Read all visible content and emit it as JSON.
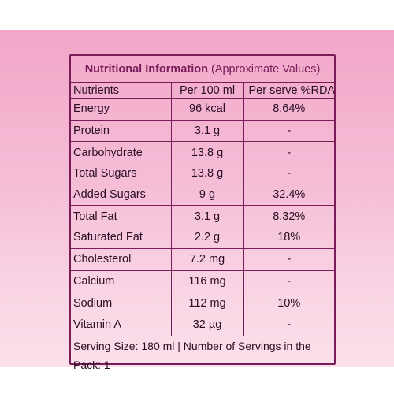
{
  "panel": {
    "title_bold": "Nutritional Information",
    "title_rest": "(Approximate Values)"
  },
  "table": {
    "headers": [
      "Nutrients",
      "Per 100 ml",
      "Per serve %RDA"
    ],
    "rows": [
      {
        "nutrient": "Energy",
        "per100": "96 kcal",
        "rda": "8.64%"
      },
      {
        "nutrient": "Protein",
        "per100": "3.1 g",
        "rda": "-"
      },
      {
        "nutrient": "Carbohydrate",
        "per100": "13.8 g",
        "rda": "-"
      },
      {
        "nutrient": "Total Sugars",
        "per100": "13.8 g",
        "rda": "-"
      },
      {
        "nutrient": "Added Sugars",
        "per100": "9 g",
        "rda": "32.4%"
      },
      {
        "nutrient": "Total Fat",
        "per100": "3.1 g",
        "rda": "8.32%"
      },
      {
        "nutrient": "Saturated Fat",
        "per100": "2.2 g",
        "rda": "18%"
      },
      {
        "nutrient": "Cholesterol",
        "per100": "7.2 mg",
        "rda": "-"
      },
      {
        "nutrient": "Calcium",
        "per100": "116 mg",
        "rda": "-"
      },
      {
        "nutrient": "Sodium",
        "per100": "112 mg",
        "rda": "10%"
      },
      {
        "nutrient": "Vitamin A",
        "per100": "32 µg",
        "rda": "-"
      }
    ]
  },
  "footer": "Serving Size: 180 ml | Number of Servings in the Pack: 1",
  "colors": {
    "border": "#7a1b5a",
    "band_top": "#f2a7c8",
    "band_bottom": "#fbe0eb"
  }
}
